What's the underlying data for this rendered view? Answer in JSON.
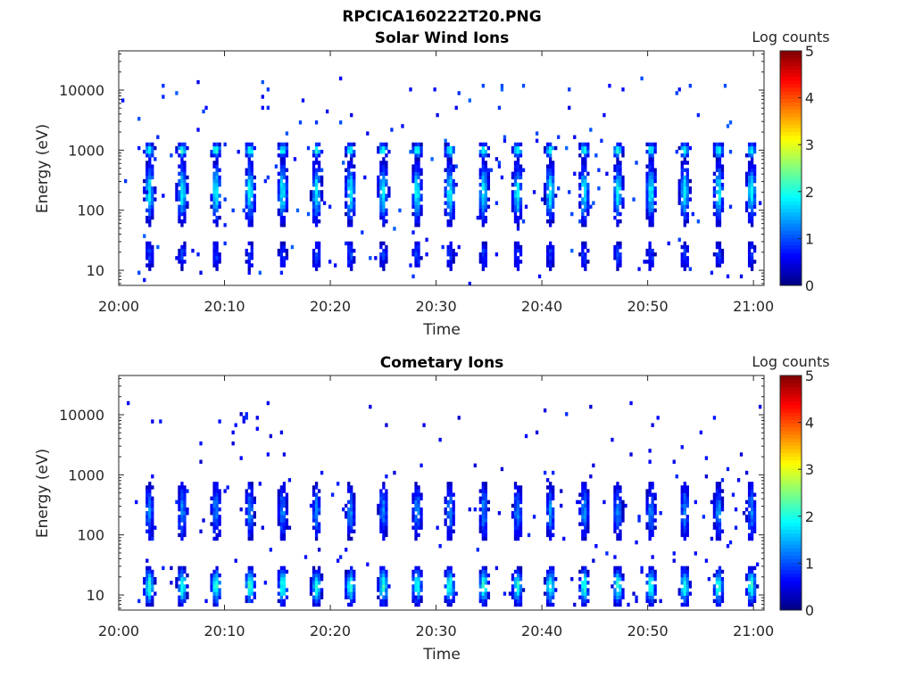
{
  "figure_title": "RPCICA160222T20.PNG",
  "chart_data": [
    {
      "type": "heatmap",
      "title": "Solar Wind Ions",
      "xlabel": "Time",
      "ylabel": "Energy (eV)",
      "x_ticks": [
        "20:00",
        "20:10",
        "20:20",
        "20:30",
        "20:40",
        "20:50",
        "21:00"
      ],
      "y_ticks": [
        "10",
        "100",
        "1000",
        "10000"
      ],
      "y_scale": "log",
      "xlim": [
        "20:00",
        "21:01"
      ],
      "ylim": [
        5.6,
        45000
      ],
      "colorbar": {
        "label": "Log counts",
        "ticks": [
          "0",
          "1",
          "2",
          "3",
          "4",
          "5"
        ],
        "range": [
          0,
          5
        ],
        "colormap": "jet"
      },
      "bursts_start_min": [
        2.5,
        5.6,
        8.8,
        12.0,
        15.1,
        18.3,
        21.5,
        24.6,
        27.8,
        30.9,
        34.1,
        37.3,
        40.4,
        43.6,
        46.8,
        49.9,
        53.1,
        56.3,
        59.4
      ],
      "populations": [
        {
          "name": "",
          "center_eV": 1000,
          "peak_log_counts": 2.1,
          "relative_width": 0.22
        },
        {
          "name": "",
          "center_eV": 200,
          "peak_log_counts": 1.9,
          "relative_width": 0.9
        },
        {
          "name": "",
          "center_eV": 18,
          "peak_log_counts": 0.9,
          "relative_width": 0.5
        }
      ],
      "background_log_counts": 0.8
    },
    {
      "type": "heatmap",
      "title": "Cometary Ions",
      "xlabel": "Time",
      "ylabel": "Energy (eV)",
      "x_ticks": [
        "20:00",
        "20:10",
        "20:20",
        "20:30",
        "20:40",
        "20:50",
        "21:00"
      ],
      "y_ticks": [
        "10",
        "100",
        "1000",
        "10000"
      ],
      "y_scale": "log",
      "xlim": [
        "20:00",
        "21:01"
      ],
      "ylim": [
        5.6,
        45000
      ],
      "colorbar": {
        "label": "Log counts",
        "ticks": [
          "0",
          "1",
          "2",
          "3",
          "4",
          "5"
        ],
        "range": [
          0,
          5
        ],
        "colormap": "jet"
      },
      "bursts_start_min": [
        2.5,
        5.6,
        8.8,
        12.0,
        15.1,
        18.3,
        21.5,
        24.6,
        27.8,
        30.9,
        34.1,
        37.3,
        40.4,
        43.6,
        46.8,
        49.9,
        53.1,
        56.3,
        59.4
      ],
      "populations": [
        {
          "name": "",
          "center_eV": 250,
          "peak_log_counts": 1.3,
          "relative_width": 0.9
        },
        {
          "name": "",
          "center_eV": 14,
          "peak_log_counts": 2.1,
          "relative_width": 0.55
        }
      ],
      "background_log_counts": 0.6
    }
  ]
}
